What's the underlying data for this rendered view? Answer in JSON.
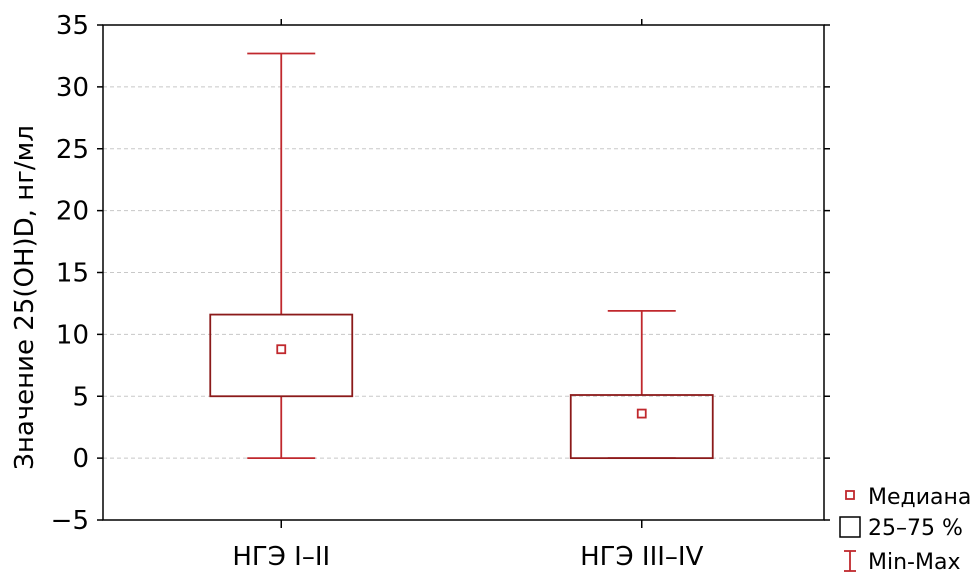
{
  "chart_data": {
    "type": "box",
    "title": "",
    "xlabel": "",
    "ylabel": "Значение 25(OH)D, нг/мл",
    "ylim": [
      -5,
      35
    ],
    "yticks": [
      -5,
      0,
      5,
      10,
      15,
      20,
      25,
      30,
      35
    ],
    "ytick_labels": [
      "−5",
      "0",
      "5",
      "10",
      "15",
      "20",
      "25",
      "30",
      "35"
    ],
    "grid": "horizontal dashed",
    "categories": [
      "НГЭ I–II",
      "НГЭ III–IV"
    ],
    "boxes": [
      {
        "category": "НГЭ I–II",
        "min": 0,
        "q1": 5,
        "median": 8.8,
        "q3": 11.6,
        "max": 32.7
      },
      {
        "category": "НГЭ III–IV",
        "min": 0,
        "q1": 0,
        "median": 3.6,
        "q3": 5.1,
        "max": 11.9
      }
    ],
    "legend": {
      "placement": "bottom-right",
      "items": [
        "Медиана",
        "25–75 %",
        "Min-Max"
      ]
    },
    "colors": {
      "box": "#8b1a1a",
      "whisker": "#c0282d",
      "median": "#c0282d",
      "grid": "#c8c8c8"
    }
  }
}
